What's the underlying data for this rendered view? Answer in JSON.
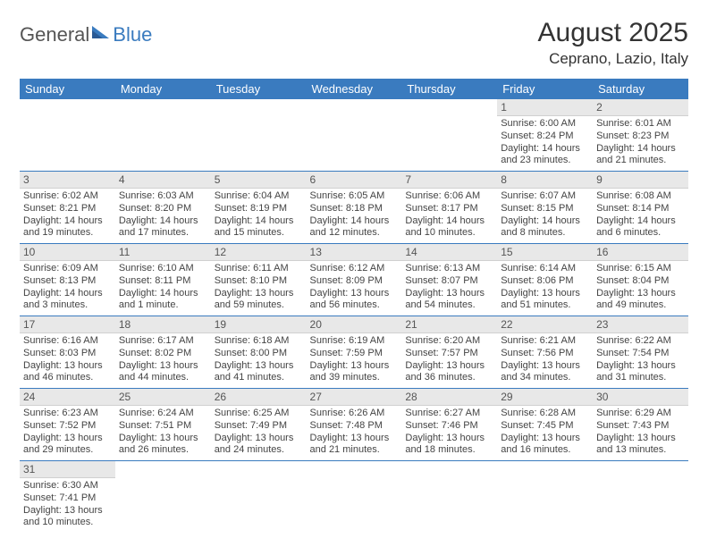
{
  "logo": {
    "text1": "General",
    "text2": "Blue"
  },
  "title": "August 2025",
  "location": "Ceprano, Lazio, Italy",
  "colors": {
    "header_bg": "#3a7bbf",
    "header_text": "#ffffff",
    "daynum_bg": "#e8e8e8",
    "cell_border": "#3a7bbf",
    "body_text": "#444444"
  },
  "dayHeaders": [
    "Sunday",
    "Monday",
    "Tuesday",
    "Wednesday",
    "Thursday",
    "Friday",
    "Saturday"
  ],
  "weeks": [
    [
      null,
      null,
      null,
      null,
      null,
      {
        "n": "1",
        "sr": "Sunrise: 6:00 AM",
        "ss": "Sunset: 8:24 PM",
        "dl": "Daylight: 14 hours and 23 minutes."
      },
      {
        "n": "2",
        "sr": "Sunrise: 6:01 AM",
        "ss": "Sunset: 8:23 PM",
        "dl": "Daylight: 14 hours and 21 minutes."
      }
    ],
    [
      {
        "n": "3",
        "sr": "Sunrise: 6:02 AM",
        "ss": "Sunset: 8:21 PM",
        "dl": "Daylight: 14 hours and 19 minutes."
      },
      {
        "n": "4",
        "sr": "Sunrise: 6:03 AM",
        "ss": "Sunset: 8:20 PM",
        "dl": "Daylight: 14 hours and 17 minutes."
      },
      {
        "n": "5",
        "sr": "Sunrise: 6:04 AM",
        "ss": "Sunset: 8:19 PM",
        "dl": "Daylight: 14 hours and 15 minutes."
      },
      {
        "n": "6",
        "sr": "Sunrise: 6:05 AM",
        "ss": "Sunset: 8:18 PM",
        "dl": "Daylight: 14 hours and 12 minutes."
      },
      {
        "n": "7",
        "sr": "Sunrise: 6:06 AM",
        "ss": "Sunset: 8:17 PM",
        "dl": "Daylight: 14 hours and 10 minutes."
      },
      {
        "n": "8",
        "sr": "Sunrise: 6:07 AM",
        "ss": "Sunset: 8:15 PM",
        "dl": "Daylight: 14 hours and 8 minutes."
      },
      {
        "n": "9",
        "sr": "Sunrise: 6:08 AM",
        "ss": "Sunset: 8:14 PM",
        "dl": "Daylight: 14 hours and 6 minutes."
      }
    ],
    [
      {
        "n": "10",
        "sr": "Sunrise: 6:09 AM",
        "ss": "Sunset: 8:13 PM",
        "dl": "Daylight: 14 hours and 3 minutes."
      },
      {
        "n": "11",
        "sr": "Sunrise: 6:10 AM",
        "ss": "Sunset: 8:11 PM",
        "dl": "Daylight: 14 hours and 1 minute."
      },
      {
        "n": "12",
        "sr": "Sunrise: 6:11 AM",
        "ss": "Sunset: 8:10 PM",
        "dl": "Daylight: 13 hours and 59 minutes."
      },
      {
        "n": "13",
        "sr": "Sunrise: 6:12 AM",
        "ss": "Sunset: 8:09 PM",
        "dl": "Daylight: 13 hours and 56 minutes."
      },
      {
        "n": "14",
        "sr": "Sunrise: 6:13 AM",
        "ss": "Sunset: 8:07 PM",
        "dl": "Daylight: 13 hours and 54 minutes."
      },
      {
        "n": "15",
        "sr": "Sunrise: 6:14 AM",
        "ss": "Sunset: 8:06 PM",
        "dl": "Daylight: 13 hours and 51 minutes."
      },
      {
        "n": "16",
        "sr": "Sunrise: 6:15 AM",
        "ss": "Sunset: 8:04 PM",
        "dl": "Daylight: 13 hours and 49 minutes."
      }
    ],
    [
      {
        "n": "17",
        "sr": "Sunrise: 6:16 AM",
        "ss": "Sunset: 8:03 PM",
        "dl": "Daylight: 13 hours and 46 minutes."
      },
      {
        "n": "18",
        "sr": "Sunrise: 6:17 AM",
        "ss": "Sunset: 8:02 PM",
        "dl": "Daylight: 13 hours and 44 minutes."
      },
      {
        "n": "19",
        "sr": "Sunrise: 6:18 AM",
        "ss": "Sunset: 8:00 PM",
        "dl": "Daylight: 13 hours and 41 minutes."
      },
      {
        "n": "20",
        "sr": "Sunrise: 6:19 AM",
        "ss": "Sunset: 7:59 PM",
        "dl": "Daylight: 13 hours and 39 minutes."
      },
      {
        "n": "21",
        "sr": "Sunrise: 6:20 AM",
        "ss": "Sunset: 7:57 PM",
        "dl": "Daylight: 13 hours and 36 minutes."
      },
      {
        "n": "22",
        "sr": "Sunrise: 6:21 AM",
        "ss": "Sunset: 7:56 PM",
        "dl": "Daylight: 13 hours and 34 minutes."
      },
      {
        "n": "23",
        "sr": "Sunrise: 6:22 AM",
        "ss": "Sunset: 7:54 PM",
        "dl": "Daylight: 13 hours and 31 minutes."
      }
    ],
    [
      {
        "n": "24",
        "sr": "Sunrise: 6:23 AM",
        "ss": "Sunset: 7:52 PM",
        "dl": "Daylight: 13 hours and 29 minutes."
      },
      {
        "n": "25",
        "sr": "Sunrise: 6:24 AM",
        "ss": "Sunset: 7:51 PM",
        "dl": "Daylight: 13 hours and 26 minutes."
      },
      {
        "n": "26",
        "sr": "Sunrise: 6:25 AM",
        "ss": "Sunset: 7:49 PM",
        "dl": "Daylight: 13 hours and 24 minutes."
      },
      {
        "n": "27",
        "sr": "Sunrise: 6:26 AM",
        "ss": "Sunset: 7:48 PM",
        "dl": "Daylight: 13 hours and 21 minutes."
      },
      {
        "n": "28",
        "sr": "Sunrise: 6:27 AM",
        "ss": "Sunset: 7:46 PM",
        "dl": "Daylight: 13 hours and 18 minutes."
      },
      {
        "n": "29",
        "sr": "Sunrise: 6:28 AM",
        "ss": "Sunset: 7:45 PM",
        "dl": "Daylight: 13 hours and 16 minutes."
      },
      {
        "n": "30",
        "sr": "Sunrise: 6:29 AM",
        "ss": "Sunset: 7:43 PM",
        "dl": "Daylight: 13 hours and 13 minutes."
      }
    ],
    [
      {
        "n": "31",
        "sr": "Sunrise: 6:30 AM",
        "ss": "Sunset: 7:41 PM",
        "dl": "Daylight: 13 hours and 10 minutes."
      },
      null,
      null,
      null,
      null,
      null,
      null
    ]
  ]
}
